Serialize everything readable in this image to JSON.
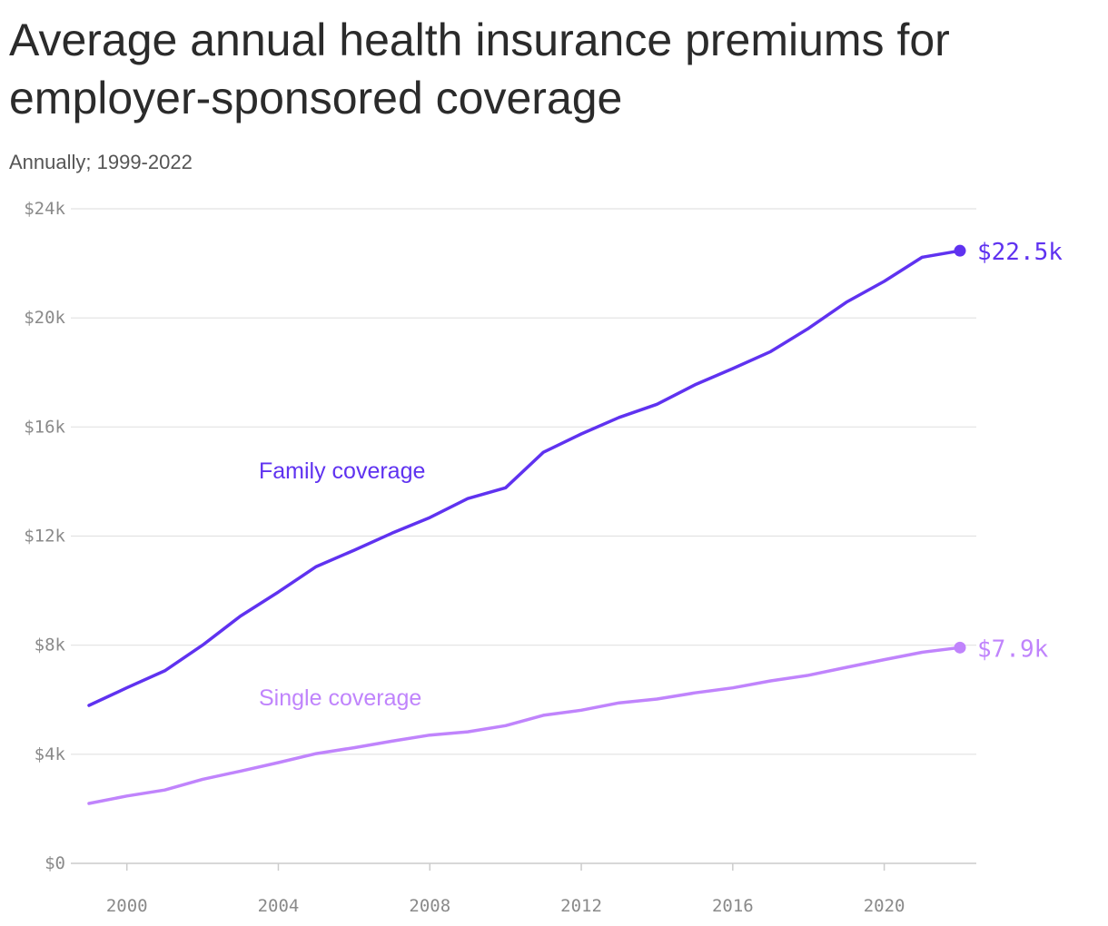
{
  "title": "Average annual health insurance premiums for employer-sponsored coverage",
  "subtitle": "Annually; 1999-2022",
  "colors": {
    "family": "#5f32f0",
    "single": "#c084fc",
    "grid": "#e2e2e2",
    "axis": "#cccccc"
  },
  "chart_data": {
    "type": "line",
    "title": "Average annual health insurance premiums for employer-sponsored coverage",
    "subtitle": "Annually; 1999-2022",
    "x": [
      1999,
      2000,
      2001,
      2002,
      2003,
      2004,
      2005,
      2006,
      2007,
      2008,
      2009,
      2010,
      2011,
      2012,
      2013,
      2014,
      2015,
      2016,
      2017,
      2018,
      2019,
      2020,
      2021,
      2022
    ],
    "series": [
      {
        "name": "Family coverage",
        "color": "#5f32f0",
        "values": [
          5791,
          6438,
          7061,
          8003,
          9068,
          9950,
          10880,
          11480,
          12106,
          12680,
          13375,
          13770,
          15073,
          15745,
          16351,
          16834,
          17545,
          18142,
          18764,
          19616,
          20576,
          21342,
          22221,
          22463
        ],
        "end_label": "$22.5k"
      },
      {
        "name": "Single coverage",
        "color": "#c084fc",
        "values": [
          2196,
          2471,
          2689,
          3083,
          3383,
          3695,
          4024,
          4242,
          4479,
          4704,
          4824,
          5049,
          5429,
          5615,
          5884,
          6025,
          6251,
          6435,
          6690,
          6896,
          7188,
          7470,
          7739,
          7911
        ],
        "end_label": "$7.9k"
      }
    ],
    "y_ticks": [
      0,
      4000,
      8000,
      12000,
      16000,
      20000,
      24000
    ],
    "y_tick_labels": [
      "$0",
      "$4k",
      "$8k",
      "$12k",
      "$16k",
      "$20k",
      "$24k"
    ],
    "x_ticks": [
      2000,
      2004,
      2008,
      2012,
      2016,
      2020
    ],
    "x_tick_labels": [
      "2000",
      "2004",
      "2008",
      "2012",
      "2016",
      "2020"
    ],
    "xlim": [
      1998,
      2022.5
    ],
    "ylim": [
      0,
      24000
    ],
    "grid": true,
    "legend": "inline labels"
  }
}
